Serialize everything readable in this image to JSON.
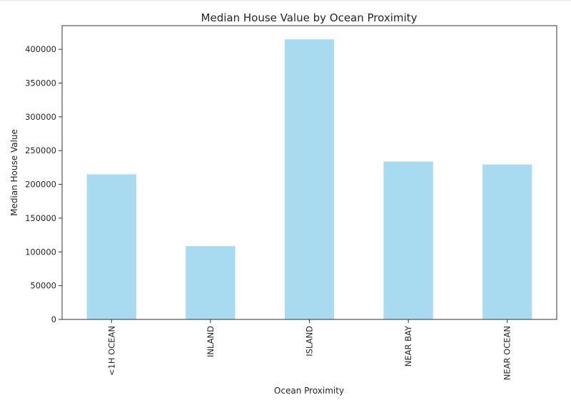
{
  "chart_data": {
    "type": "bar",
    "title": "Median House Value by Ocean Proximity",
    "xlabel": "Ocean Proximity",
    "ylabel": "Median House Value",
    "categories": [
      "<1H OCEAN",
      "INLAND",
      "ISLAND",
      "NEAR BAY",
      "NEAR OCEAN"
    ],
    "values": [
      214850,
      108500,
      414700,
      233800,
      229450
    ],
    "ylim": [
      0,
      435000
    ],
    "yticks": [
      0,
      50000,
      100000,
      150000,
      200000,
      250000,
      300000,
      350000,
      400000
    ],
    "ytick_labels": [
      "0",
      "50000",
      "100000",
      "150000",
      "200000",
      "250000",
      "300000",
      "350000",
      "400000"
    ],
    "grid": false,
    "legend": "none",
    "colors": {
      "bar": "#a8dbef",
      "axis": "#333333",
      "text": "#262626"
    }
  }
}
